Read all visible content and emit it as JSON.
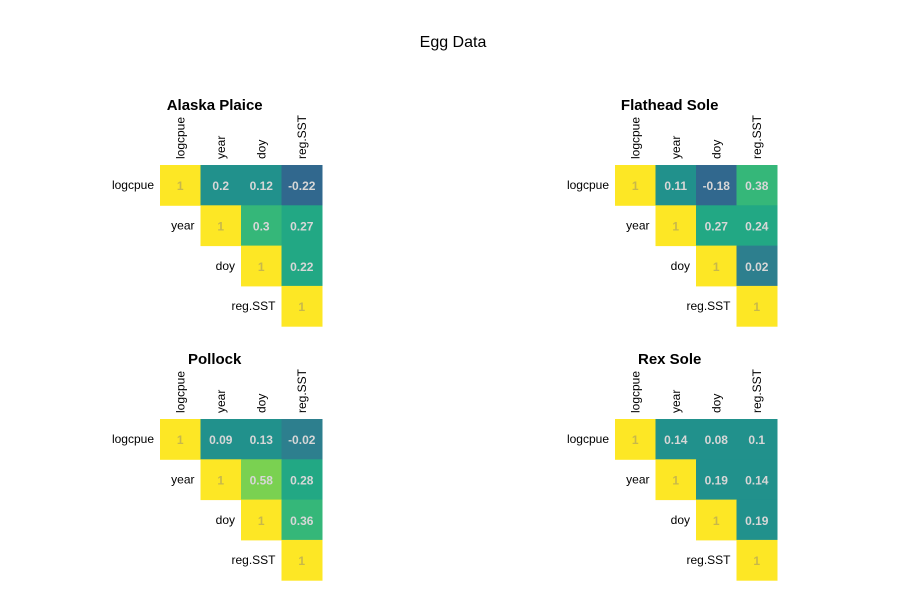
{
  "title": "Egg Data",
  "chart_data": [
    {
      "type": "heatmap",
      "title": "Alaska Plaice",
      "variables": [
        "logcpue",
        "year",
        "doy",
        "reg.SST"
      ],
      "matrix": [
        [
          1,
          0.2,
          0.12,
          -0.22
        ],
        [
          null,
          1,
          0.3,
          0.27
        ],
        [
          null,
          null,
          1,
          0.22
        ],
        [
          null,
          null,
          null,
          1
        ]
      ],
      "labels": [
        [
          "1",
          "0.2",
          "0.12",
          "-0.22"
        ],
        [
          "",
          "1",
          "0.3",
          "0.27"
        ],
        [
          "",
          "",
          "1",
          "0.22"
        ],
        [
          "",
          "",
          "",
          "1"
        ]
      ]
    },
    {
      "type": "heatmap",
      "title": "Flathead Sole",
      "variables": [
        "logcpue",
        "year",
        "doy",
        "reg.SST"
      ],
      "matrix": [
        [
          1,
          0.11,
          -0.18,
          0.38
        ],
        [
          null,
          1,
          0.27,
          0.24
        ],
        [
          null,
          null,
          1,
          0.02
        ],
        [
          null,
          null,
          null,
          1
        ]
      ],
      "labels": [
        [
          "1",
          "0.11",
          "-0.18",
          "0.38"
        ],
        [
          "",
          "1",
          "0.27",
          "0.24"
        ],
        [
          "",
          "",
          "1",
          "0.02"
        ],
        [
          "",
          "",
          "",
          "1"
        ]
      ]
    },
    {
      "type": "heatmap",
      "title": "Pollock",
      "variables": [
        "logcpue",
        "year",
        "doy",
        "reg.SST"
      ],
      "matrix": [
        [
          1,
          0.09,
          0.13,
          -0.02
        ],
        [
          null,
          1,
          0.58,
          0.28
        ],
        [
          null,
          null,
          1,
          0.36
        ],
        [
          null,
          null,
          null,
          1
        ]
      ],
      "labels": [
        [
          "1",
          "0.09",
          "0.13",
          "-0.02"
        ],
        [
          "",
          "1",
          "0.58",
          "0.28"
        ],
        [
          "",
          "",
          "1",
          "0.36"
        ],
        [
          "",
          "",
          "",
          "1"
        ]
      ]
    },
    {
      "type": "heatmap",
      "title": "Rex Sole",
      "variables": [
        "logcpue",
        "year",
        "doy",
        "reg.SST"
      ],
      "matrix": [
        [
          1,
          0.14,
          0.08,
          0.1
        ],
        [
          null,
          1,
          0.19,
          0.14
        ],
        [
          null,
          null,
          1,
          0.19
        ],
        [
          null,
          null,
          null,
          1
        ]
      ],
      "labels": [
        [
          "1",
          "0.14",
          "0.08",
          "0.1"
        ],
        [
          "",
          "1",
          "0.19",
          "0.14"
        ],
        [
          "",
          "",
          "1",
          "0.19"
        ],
        [
          "",
          "",
          "",
          "1"
        ]
      ]
    }
  ],
  "colors": {
    "diagonal": "#fde725",
    "diagonal_text": "#c8b84a",
    "offdiag_text": "#d7d7d7",
    "palette": [
      "#31688e",
      "#2d7f8e",
      "#21918c",
      "#22a884",
      "#35b779",
      "#5ec962",
      "#7ad151"
    ]
  }
}
